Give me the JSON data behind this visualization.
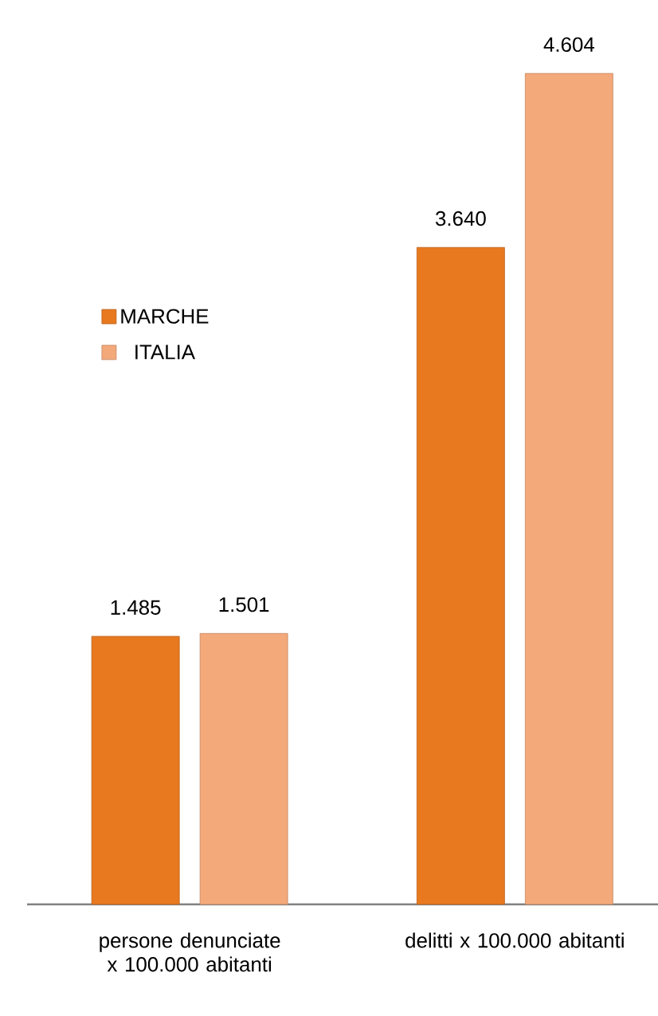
{
  "chart_data": {
    "type": "bar",
    "categories": [
      "persone denunciate x 100.000 abitanti",
      "delitti x 100.000 abitanti"
    ],
    "series": [
      {
        "name": "MARCHE",
        "color": "#e8791f",
        "values": [
          1485,
          3640
        ],
        "value_labels": [
          "1.485",
          "3.640"
        ]
      },
      {
        "name": "ITALIA",
        "color": "#f4a97a",
        "values": [
          1501,
          4604
        ],
        "value_labels": [
          "1.501",
          "4.604"
        ]
      }
    ],
    "legend": "left"
  }
}
